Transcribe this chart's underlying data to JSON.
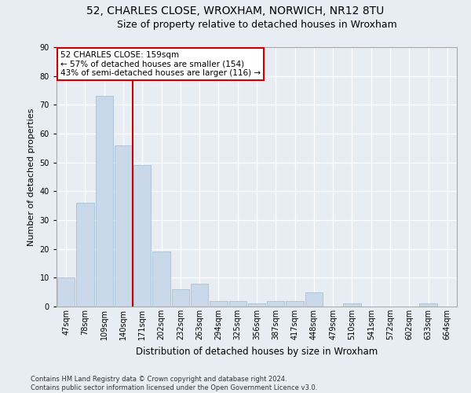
{
  "title": "52, CHARLES CLOSE, WROXHAM, NORWICH, NR12 8TU",
  "subtitle": "Size of property relative to detached houses in Wroxham",
  "xlabel": "Distribution of detached houses by size in Wroxham",
  "ylabel": "Number of detached properties",
  "categories": [
    "47sqm",
    "78sqm",
    "109sqm",
    "140sqm",
    "171sqm",
    "202sqm",
    "232sqm",
    "263sqm",
    "294sqm",
    "325sqm",
    "356sqm",
    "387sqm",
    "417sqm",
    "448sqm",
    "479sqm",
    "510sqm",
    "541sqm",
    "572sqm",
    "602sqm",
    "633sqm",
    "664sqm"
  ],
  "values": [
    10,
    36,
    73,
    56,
    49,
    19,
    6,
    8,
    2,
    2,
    1,
    2,
    2,
    5,
    0,
    1,
    0,
    0,
    0,
    1,
    0
  ],
  "bar_color": "#c9d9ea",
  "bar_edge_color": "#a8c0d6",
  "vline_x": 3.5,
  "vline_color": "#cc0000",
  "annotation_text": "52 CHARLES CLOSE: 159sqm\n← 57% of detached houses are smaller (154)\n43% of semi-detached houses are larger (116) →",
  "annotation_box_facecolor": "#ffffff",
  "annotation_box_edgecolor": "#cc0000",
  "ylim": [
    0,
    90
  ],
  "yticks": [
    0,
    10,
    20,
    30,
    40,
    50,
    60,
    70,
    80,
    90
  ],
  "background_color": "#e8edf4",
  "plot_background_color": "#e8edf4",
  "footer_line1": "Contains HM Land Registry data © Crown copyright and database right 2024.",
  "footer_line2": "Contains public sector information licensed under the Open Government Licence v3.0.",
  "title_fontsize": 10,
  "subtitle_fontsize": 9,
  "tick_fontsize": 7,
  "ylabel_fontsize": 8,
  "xlabel_fontsize": 8.5,
  "annotation_fontsize": 7.5,
  "footer_fontsize": 6
}
